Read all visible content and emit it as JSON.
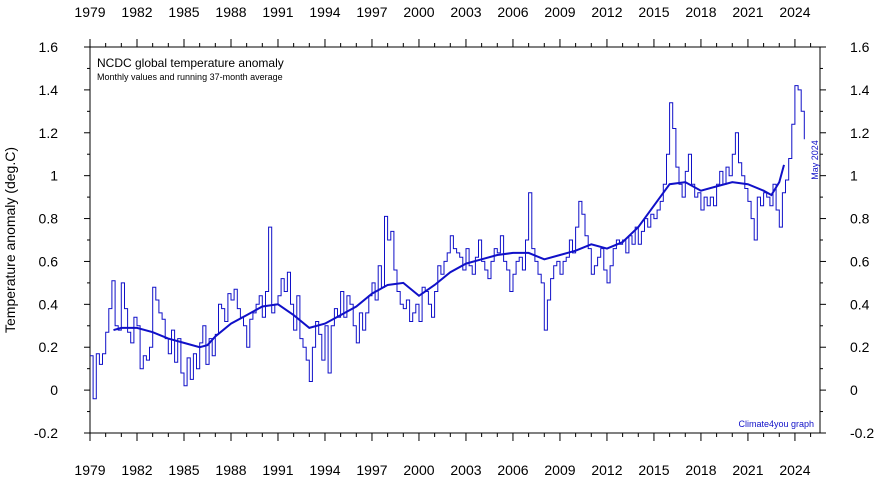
{
  "chart_data": {
    "type": "line",
    "title": "NCDC global temperature anomaly",
    "subtitle": "Monthly values and running 37-month average",
    "ylabel": "Temperature anomaly (deg.C)",
    "xlabel": "",
    "xlim": [
      1979,
      2025.6
    ],
    "ylim": [
      -0.2,
      1.6
    ],
    "xticks": [
      "1979",
      "1982",
      "1985",
      "1988",
      "1991",
      "1994",
      "1997",
      "2000",
      "2003",
      "2006",
      "2009",
      "2012",
      "2015",
      "2018",
      "2021",
      "2024"
    ],
    "yticks": [
      "-0.2",
      "0",
      "0.2",
      "0.4",
      "0.6",
      "0.8",
      "1",
      "1.2",
      "1.4",
      "1.6"
    ],
    "annotation_latest": "May 2024",
    "credit": "Climate4you graph",
    "colors": {
      "line": "#1010c8",
      "axis": "#000000",
      "background": "#ffffff"
    },
    "series": [
      {
        "name": "Monthly values",
        "points": [
          [
            1979.0,
            0.16
          ],
          [
            1979.2,
            -0.04
          ],
          [
            1979.4,
            0.17
          ],
          [
            1979.6,
            0.12
          ],
          [
            1979.8,
            0.17
          ],
          [
            1980.0,
            0.27
          ],
          [
            1980.2,
            0.38
          ],
          [
            1980.4,
            0.51
          ],
          [
            1980.6,
            0.3
          ],
          [
            1980.8,
            0.28
          ],
          [
            1981.0,
            0.5
          ],
          [
            1981.2,
            0.38
          ],
          [
            1981.4,
            0.27
          ],
          [
            1981.6,
            0.22
          ],
          [
            1981.8,
            0.34
          ],
          [
            1982.0,
            0.3
          ],
          [
            1982.2,
            0.1
          ],
          [
            1982.4,
            0.16
          ],
          [
            1982.6,
            0.14
          ],
          [
            1982.8,
            0.2
          ],
          [
            1983.0,
            0.48
          ],
          [
            1983.2,
            0.42
          ],
          [
            1983.4,
            0.36
          ],
          [
            1983.6,
            0.33
          ],
          [
            1983.8,
            0.24
          ],
          [
            1984.0,
            0.17
          ],
          [
            1984.2,
            0.28
          ],
          [
            1984.4,
            0.13
          ],
          [
            1984.6,
            0.24
          ],
          [
            1984.8,
            0.08
          ],
          [
            1985.0,
            0.02
          ],
          [
            1985.2,
            0.15
          ],
          [
            1985.4,
            0.05
          ],
          [
            1985.6,
            0.17
          ],
          [
            1985.8,
            0.1
          ],
          [
            1986.0,
            0.22
          ],
          [
            1986.2,
            0.3
          ],
          [
            1986.4,
            0.12
          ],
          [
            1986.6,
            0.24
          ],
          [
            1986.8,
            0.16
          ],
          [
            1987.0,
            0.26
          ],
          [
            1987.2,
            0.4
          ],
          [
            1987.4,
            0.38
          ],
          [
            1987.6,
            0.32
          ],
          [
            1987.8,
            0.45
          ],
          [
            1988.0,
            0.42
          ],
          [
            1988.2,
            0.47
          ],
          [
            1988.4,
            0.38
          ],
          [
            1988.6,
            0.34
          ],
          [
            1988.8,
            0.3
          ],
          [
            1989.0,
            0.2
          ],
          [
            1989.2,
            0.33
          ],
          [
            1989.4,
            0.36
          ],
          [
            1989.6,
            0.4
          ],
          [
            1989.8,
            0.44
          ],
          [
            1990.0,
            0.34
          ],
          [
            1990.2,
            0.46
          ],
          [
            1990.4,
            0.76
          ],
          [
            1990.6,
            0.36
          ],
          [
            1990.8,
            0.4
          ],
          [
            1991.0,
            0.44
          ],
          [
            1991.2,
            0.52
          ],
          [
            1991.4,
            0.46
          ],
          [
            1991.6,
            0.55
          ],
          [
            1991.8,
            0.4
          ],
          [
            1992.0,
            0.28
          ],
          [
            1992.2,
            0.44
          ],
          [
            1992.4,
            0.24
          ],
          [
            1992.6,
            0.2
          ],
          [
            1992.8,
            0.14
          ],
          [
            1993.0,
            0.04
          ],
          [
            1993.2,
            0.2
          ],
          [
            1993.4,
            0.32
          ],
          [
            1993.6,
            0.26
          ],
          [
            1993.8,
            0.14
          ],
          [
            1994.0,
            0.3
          ],
          [
            1994.2,
            0.08
          ],
          [
            1994.4,
            0.3
          ],
          [
            1994.6,
            0.38
          ],
          [
            1994.8,
            0.34
          ],
          [
            1995.0,
            0.46
          ],
          [
            1995.2,
            0.34
          ],
          [
            1995.4,
            0.44
          ],
          [
            1995.6,
            0.4
          ],
          [
            1995.8,
            0.3
          ],
          [
            1996.0,
            0.22
          ],
          [
            1996.2,
            0.36
          ],
          [
            1996.4,
            0.28
          ],
          [
            1996.6,
            0.36
          ],
          [
            1996.8,
            0.44
          ],
          [
            1997.0,
            0.5
          ],
          [
            1997.2,
            0.42
          ],
          [
            1997.4,
            0.58
          ],
          [
            1997.6,
            0.48
          ],
          [
            1997.8,
            0.81
          ],
          [
            1998.0,
            0.7
          ],
          [
            1998.2,
            0.74
          ],
          [
            1998.4,
            0.56
          ],
          [
            1998.6,
            0.46
          ],
          [
            1998.8,
            0.4
          ],
          [
            1999.0,
            0.38
          ],
          [
            1999.2,
            0.42
          ],
          [
            1999.4,
            0.32
          ],
          [
            1999.6,
            0.36
          ],
          [
            1999.8,
            0.4
          ],
          [
            2000.0,
            0.32
          ],
          [
            2000.2,
            0.48
          ],
          [
            2000.4,
            0.46
          ],
          [
            2000.6,
            0.4
          ],
          [
            2000.8,
            0.34
          ],
          [
            2001.0,
            0.46
          ],
          [
            2001.2,
            0.58
          ],
          [
            2001.4,
            0.54
          ],
          [
            2001.6,
            0.6
          ],
          [
            2001.8,
            0.64
          ],
          [
            2002.0,
            0.72
          ],
          [
            2002.2,
            0.66
          ],
          [
            2002.4,
            0.64
          ],
          [
            2002.6,
            0.62
          ],
          [
            2002.8,
            0.56
          ],
          [
            2003.0,
            0.66
          ],
          [
            2003.2,
            0.58
          ],
          [
            2003.4,
            0.54
          ],
          [
            2003.6,
            0.62
          ],
          [
            2003.8,
            0.7
          ],
          [
            2004.0,
            0.6
          ],
          [
            2004.2,
            0.56
          ],
          [
            2004.4,
            0.52
          ],
          [
            2004.6,
            0.6
          ],
          [
            2004.8,
            0.66
          ],
          [
            2005.0,
            0.64
          ],
          [
            2005.2,
            0.72
          ],
          [
            2005.4,
            0.6
          ],
          [
            2005.6,
            0.56
          ],
          [
            2005.8,
            0.46
          ],
          [
            2006.0,
            0.54
          ],
          [
            2006.2,
            0.6
          ],
          [
            2006.4,
            0.62
          ],
          [
            2006.6,
            0.56
          ],
          [
            2006.8,
            0.7
          ],
          [
            2007.0,
            0.92
          ],
          [
            2007.2,
            0.66
          ],
          [
            2007.4,
            0.6
          ],
          [
            2007.6,
            0.54
          ],
          [
            2007.8,
            0.5
          ],
          [
            2008.0,
            0.28
          ],
          [
            2008.2,
            0.42
          ],
          [
            2008.4,
            0.52
          ],
          [
            2008.6,
            0.58
          ],
          [
            2008.8,
            0.6
          ],
          [
            2009.0,
            0.54
          ],
          [
            2009.2,
            0.6
          ],
          [
            2009.4,
            0.62
          ],
          [
            2009.6,
            0.7
          ],
          [
            2009.8,
            0.64
          ],
          [
            2010.0,
            0.76
          ],
          [
            2010.2,
            0.88
          ],
          [
            2010.4,
            0.82
          ],
          [
            2010.6,
            0.72
          ],
          [
            2010.8,
            0.66
          ],
          [
            2011.0,
            0.54
          ],
          [
            2011.2,
            0.58
          ],
          [
            2011.4,
            0.62
          ],
          [
            2011.6,
            0.66
          ],
          [
            2011.8,
            0.56
          ],
          [
            2012.0,
            0.5
          ],
          [
            2012.2,
            0.58
          ],
          [
            2012.4,
            0.66
          ],
          [
            2012.6,
            0.7
          ],
          [
            2012.8,
            0.68
          ],
          [
            2013.0,
            0.7
          ],
          [
            2013.2,
            0.64
          ],
          [
            2013.4,
            0.72
          ],
          [
            2013.6,
            0.68
          ],
          [
            2013.8,
            0.76
          ],
          [
            2014.0,
            0.68
          ],
          [
            2014.2,
            0.74
          ],
          [
            2014.4,
            0.8
          ],
          [
            2014.6,
            0.76
          ],
          [
            2014.8,
            0.82
          ],
          [
            2015.0,
            0.8
          ],
          [
            2015.2,
            0.84
          ],
          [
            2015.4,
            0.88
          ],
          [
            2015.6,
            0.96
          ],
          [
            2015.8,
            1.1
          ],
          [
            2016.0,
            1.34
          ],
          [
            2016.2,
            1.22
          ],
          [
            2016.4,
            1.04
          ],
          [
            2016.6,
            0.96
          ],
          [
            2016.8,
            0.9
          ],
          [
            2017.0,
            1.02
          ],
          [
            2017.2,
            1.1
          ],
          [
            2017.4,
            0.96
          ],
          [
            2017.6,
            0.9
          ],
          [
            2017.8,
            0.92
          ],
          [
            2018.0,
            0.84
          ],
          [
            2018.2,
            0.9
          ],
          [
            2018.4,
            0.86
          ],
          [
            2018.6,
            0.9
          ],
          [
            2018.8,
            0.86
          ],
          [
            2019.0,
            0.96
          ],
          [
            2019.2,
            1.02
          ],
          [
            2019.4,
            0.96
          ],
          [
            2019.6,
            1.04
          ],
          [
            2019.8,
            1.0
          ],
          [
            2020.0,
            1.1
          ],
          [
            2020.2,
            1.2
          ],
          [
            2020.4,
            1.06
          ],
          [
            2020.6,
            1.0
          ],
          [
            2020.8,
            0.94
          ],
          [
            2021.0,
            0.88
          ],
          [
            2021.2,
            0.8
          ],
          [
            2021.4,
            0.7
          ],
          [
            2021.6,
            0.9
          ],
          [
            2021.8,
            0.86
          ],
          [
            2022.0,
            0.92
          ],
          [
            2022.2,
            0.9
          ],
          [
            2022.4,
            0.86
          ],
          [
            2022.6,
            0.96
          ],
          [
            2022.8,
            0.84
          ],
          [
            2023.0,
            0.76
          ],
          [
            2023.2,
            0.92
          ],
          [
            2023.4,
            0.98
          ],
          [
            2023.6,
            1.08
          ],
          [
            2023.8,
            1.24
          ],
          [
            2024.0,
            1.42
          ],
          [
            2024.2,
            1.4
          ],
          [
            2024.4,
            1.3
          ],
          [
            2024.6,
            1.17
          ]
        ]
      },
      {
        "name": "Running 37-month average",
        "points": [
          [
            1980.5,
            0.28
          ],
          [
            1981.0,
            0.29
          ],
          [
            1982.0,
            0.29
          ],
          [
            1983.0,
            0.27
          ],
          [
            1984.0,
            0.24
          ],
          [
            1985.0,
            0.22
          ],
          [
            1986.0,
            0.2
          ],
          [
            1986.5,
            0.21
          ],
          [
            1987.0,
            0.25
          ],
          [
            1988.0,
            0.31
          ],
          [
            1989.0,
            0.35
          ],
          [
            1990.0,
            0.39
          ],
          [
            1991.0,
            0.4
          ],
          [
            1992.0,
            0.35
          ],
          [
            1993.0,
            0.29
          ],
          [
            1994.0,
            0.31
          ],
          [
            1995.0,
            0.35
          ],
          [
            1996.0,
            0.39
          ],
          [
            1997.0,
            0.45
          ],
          [
            1998.0,
            0.49
          ],
          [
            1999.0,
            0.5
          ],
          [
            2000.0,
            0.44
          ],
          [
            2001.0,
            0.49
          ],
          [
            2002.0,
            0.55
          ],
          [
            2003.0,
            0.59
          ],
          [
            2004.0,
            0.61
          ],
          [
            2005.0,
            0.63
          ],
          [
            2006.0,
            0.64
          ],
          [
            2007.0,
            0.64
          ],
          [
            2008.0,
            0.61
          ],
          [
            2009.0,
            0.63
          ],
          [
            2010.0,
            0.65
          ],
          [
            2011.0,
            0.68
          ],
          [
            2012.0,
            0.66
          ],
          [
            2013.0,
            0.69
          ],
          [
            2014.0,
            0.76
          ],
          [
            2015.0,
            0.86
          ],
          [
            2016.0,
            0.96
          ],
          [
            2017.0,
            0.97
          ],
          [
            2018.0,
            0.93
          ],
          [
            2019.0,
            0.95
          ],
          [
            2020.0,
            0.97
          ],
          [
            2021.0,
            0.96
          ],
          [
            2022.0,
            0.93
          ],
          [
            2022.5,
            0.91
          ],
          [
            2023.0,
            0.97
          ],
          [
            2023.3,
            1.05
          ]
        ]
      }
    ]
  }
}
